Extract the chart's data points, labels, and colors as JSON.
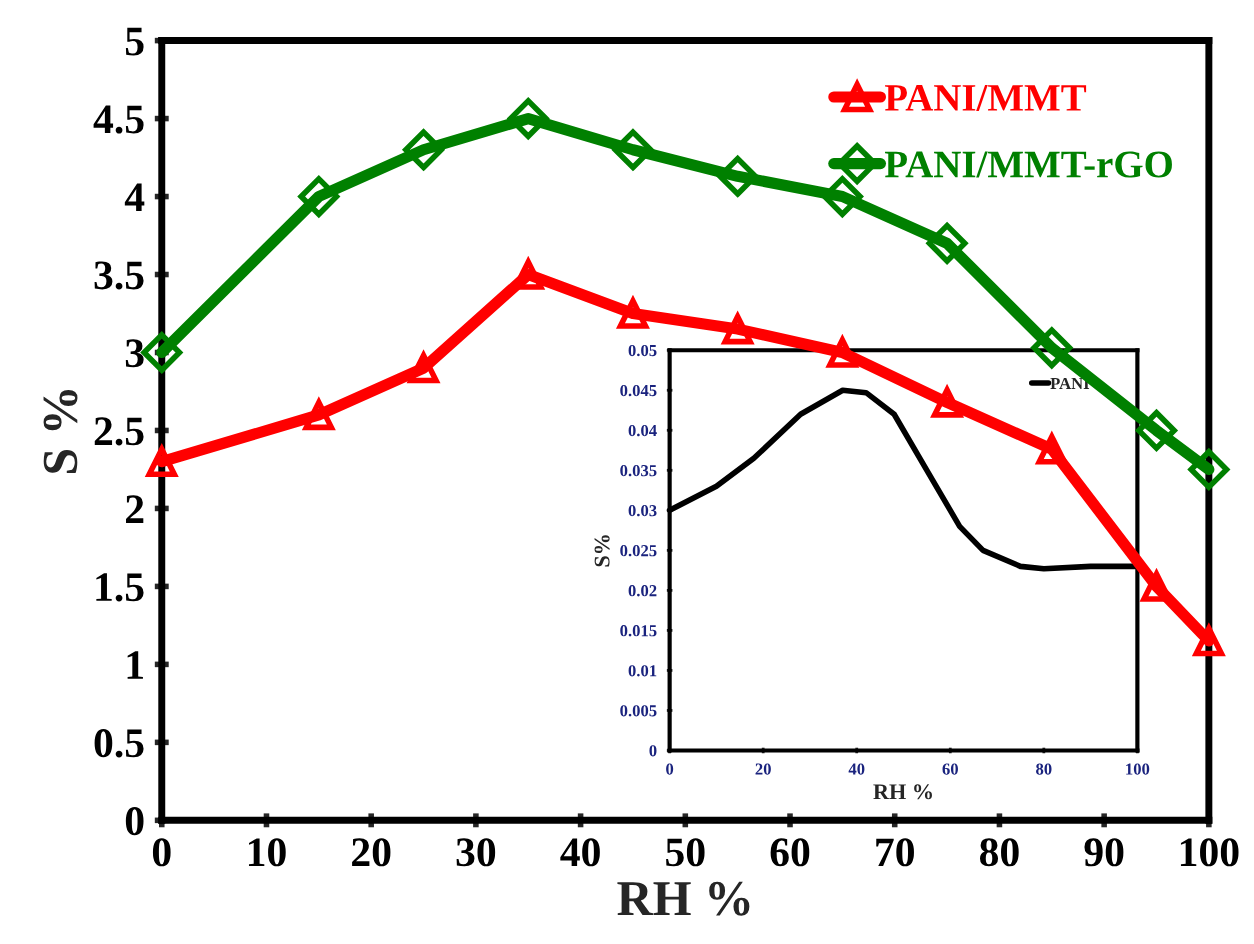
{
  "chart_data": [
    {
      "type": "line",
      "xlabel": "RH %",
      "ylabel": "S %",
      "x": [
        0,
        15,
        25,
        35,
        45,
        55,
        65,
        75,
        85,
        95,
        100
      ],
      "series": [
        {
          "name": "PANI/MMT",
          "color": "#ff0000",
          "marker": "triangle",
          "values": [
            2.3,
            2.6,
            2.9,
            3.5,
            3.25,
            3.15,
            3.0,
            2.68,
            2.38,
            1.5,
            1.15
          ]
        },
        {
          "name": "PANI/MMT-rGO",
          "color": "#008000",
          "marker": "diamond",
          "values": [
            3.0,
            4.0,
            4.3,
            4.5,
            4.3,
            4.13,
            4.0,
            3.7,
            3.03,
            2.5,
            2.25
          ]
        }
      ],
      "xlim": [
        0,
        100
      ],
      "xticks": [
        0,
        10,
        20,
        30,
        40,
        50,
        60,
        70,
        80,
        90,
        100
      ],
      "ylim": [
        0,
        5
      ],
      "yticks": [
        0,
        0.5,
        1,
        1.5,
        2,
        2.5,
        3,
        3.5,
        4,
        4.5,
        5
      ],
      "grid": false,
      "legend": "top right",
      "line_style": "solid"
    },
    {
      "type": "line",
      "xlabel": "RH %",
      "ylabel": "S%",
      "series": [
        {
          "name": "PANI",
          "color": "#000000",
          "marker": "none",
          "x": [
            0,
            10,
            18,
            28,
            37,
            42,
            48,
            55,
            62,
            67,
            75,
            80,
            90,
            100
          ],
          "values": [
            0.03,
            0.033,
            0.0365,
            0.042,
            0.045,
            0.0447,
            0.042,
            0.035,
            0.028,
            0.025,
            0.023,
            0.0227,
            0.023,
            0.023
          ]
        }
      ],
      "xlim": [
        0,
        100
      ],
      "xticks": [
        0,
        20,
        40,
        60,
        80,
        100
      ],
      "ylim": [
        0,
        0.05
      ],
      "yticks": [
        0,
        0.005,
        0.01,
        0.015,
        0.02,
        0.025,
        0.03,
        0.035,
        0.04,
        0.045,
        0.05
      ],
      "grid": false,
      "legend": "top right",
      "line_style": "solid"
    }
  ]
}
